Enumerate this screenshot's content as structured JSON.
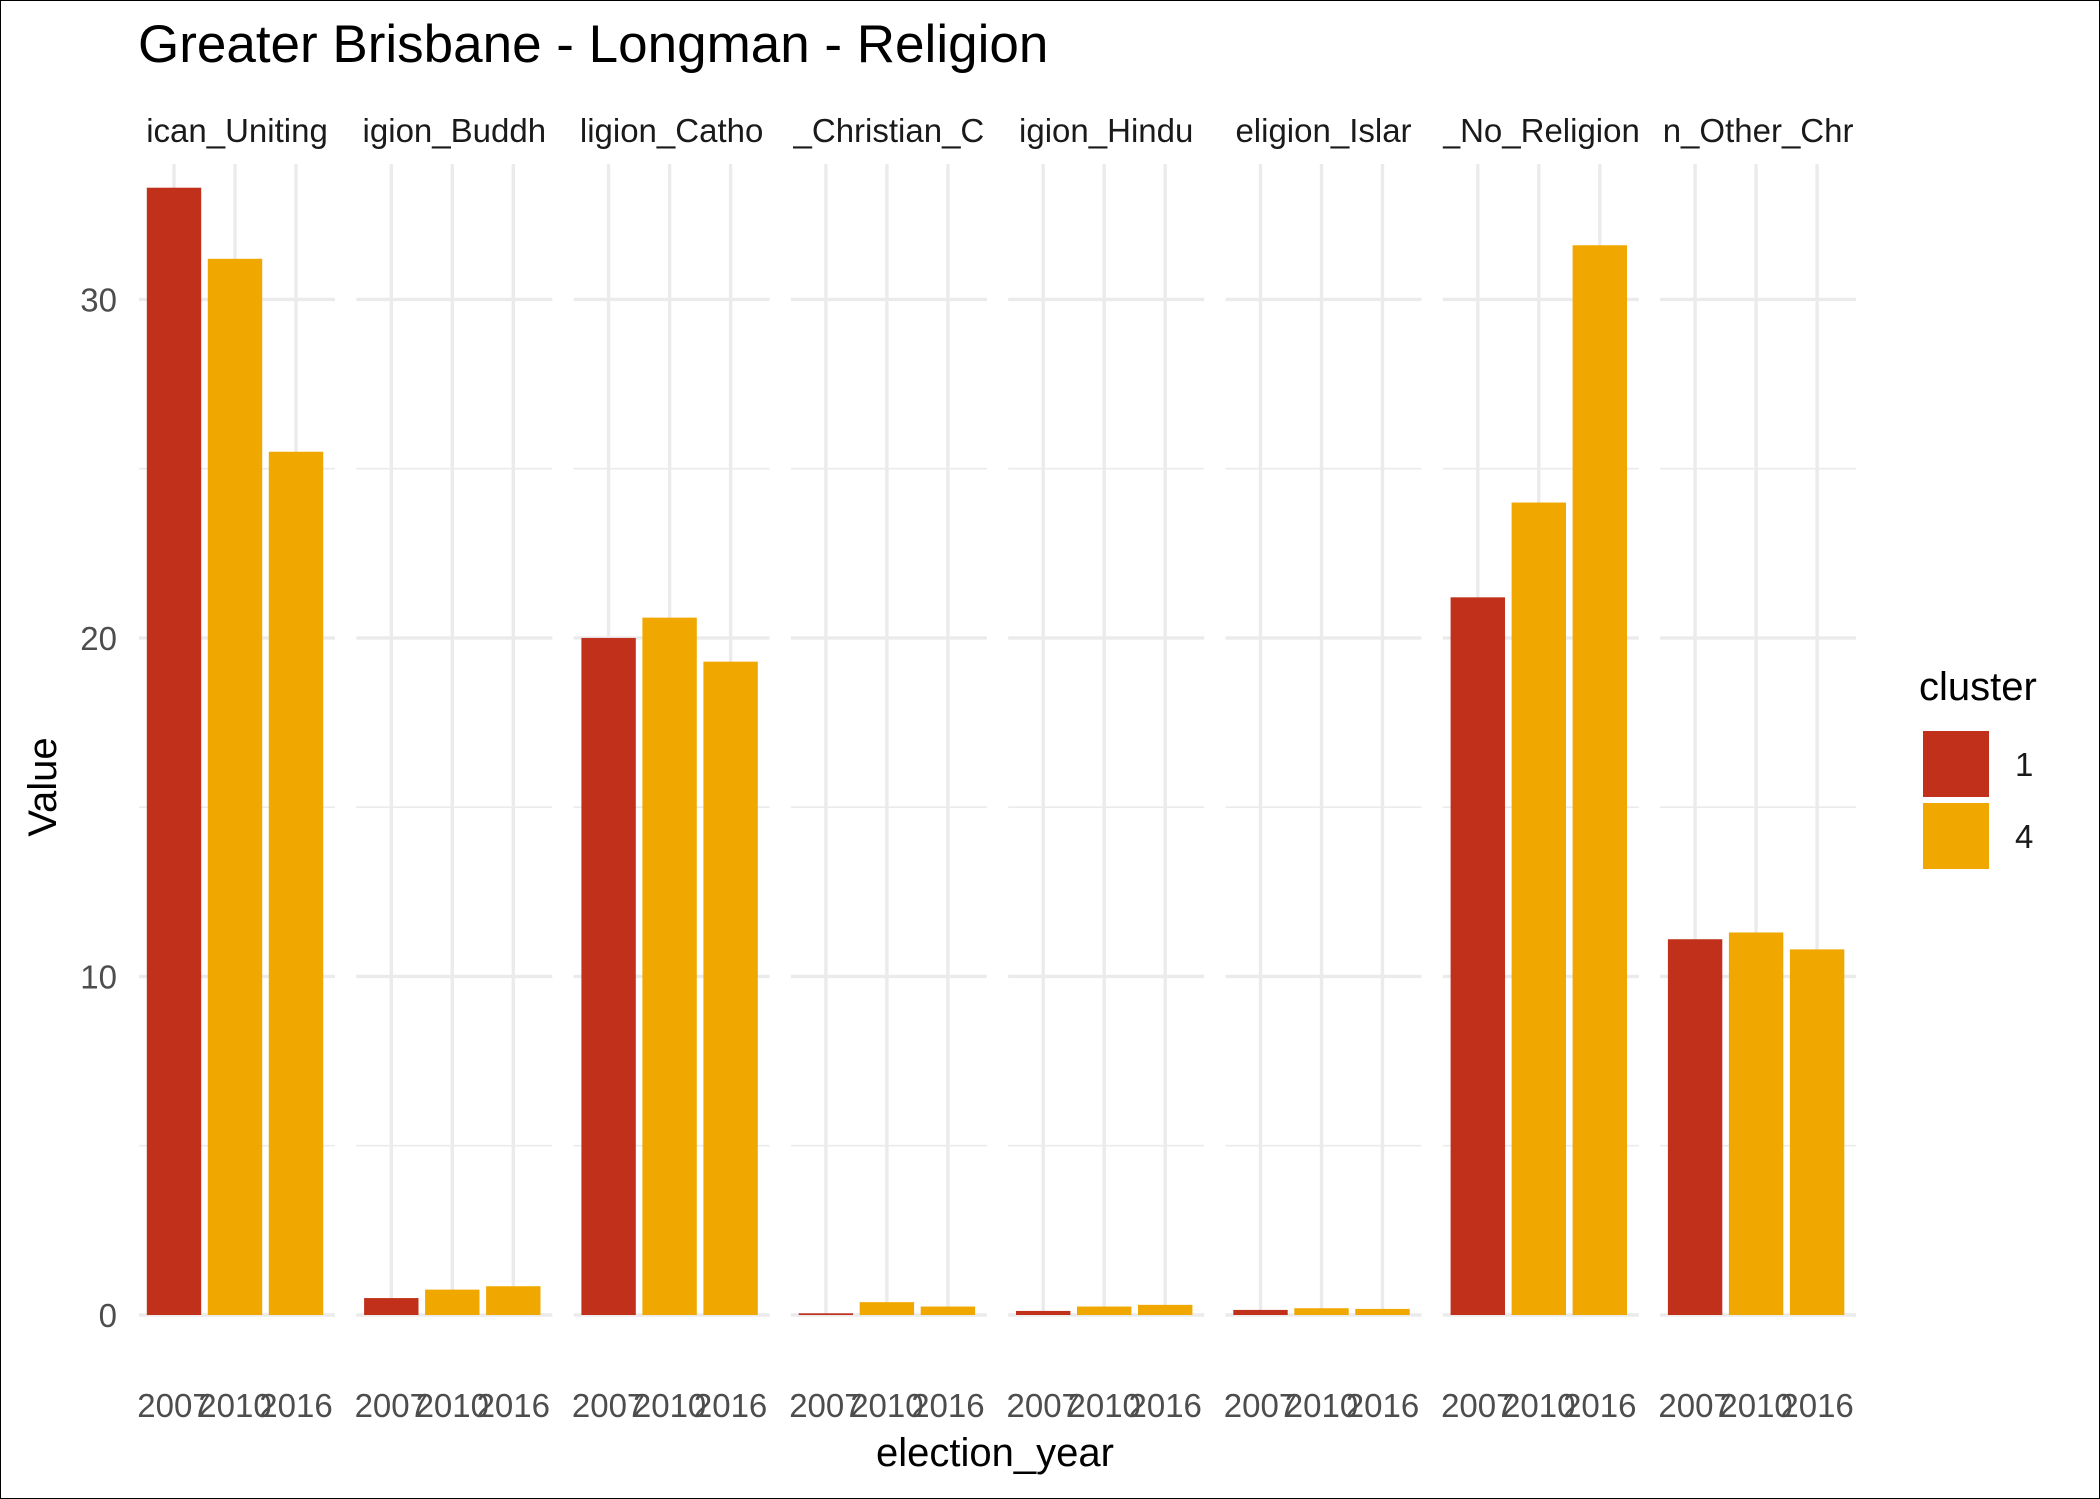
{
  "chart_data": {
    "type": "bar",
    "title": "Greater Brisbane - Longman - Religion",
    "xlabel": "election_year",
    "ylabel": "Value",
    "ylim": [
      0,
      34
    ],
    "y_ticks": [
      0,
      10,
      20,
      30
    ],
    "grid": true,
    "legend": {
      "title": "cluster",
      "position": "right"
    },
    "categories": [
      "2007",
      "2010",
      "2016"
    ],
    "colors": {
      "1": "#C0301A",
      "4": "#F0A800"
    },
    "cluster_by_year": [
      "1",
      "4",
      "4"
    ],
    "facets": [
      {
        "label": "ican_Uniting",
        "values": [
          33.3,
          31.2,
          25.5
        ]
      },
      {
        "label": "igion_Buddh",
        "values": [
          0.5,
          0.75,
          0.85
        ]
      },
      {
        "label": "ligion_Catho",
        "values": [
          20.0,
          20.6,
          19.3
        ]
      },
      {
        "label": "_Christian_C",
        "values": [
          0.05,
          0.38,
          0.25
        ]
      },
      {
        "label": "igion_Hindu",
        "values": [
          0.12,
          0.25,
          0.3
        ]
      },
      {
        "label": "eligion_Islar",
        "values": [
          0.15,
          0.2,
          0.18
        ]
      },
      {
        "label": "_No_Religion",
        "values": [
          21.2,
          24.0,
          31.6
        ]
      },
      {
        "label": "n_Other_Chr",
        "values": [
          11.1,
          11.3,
          10.8
        ]
      }
    ]
  }
}
